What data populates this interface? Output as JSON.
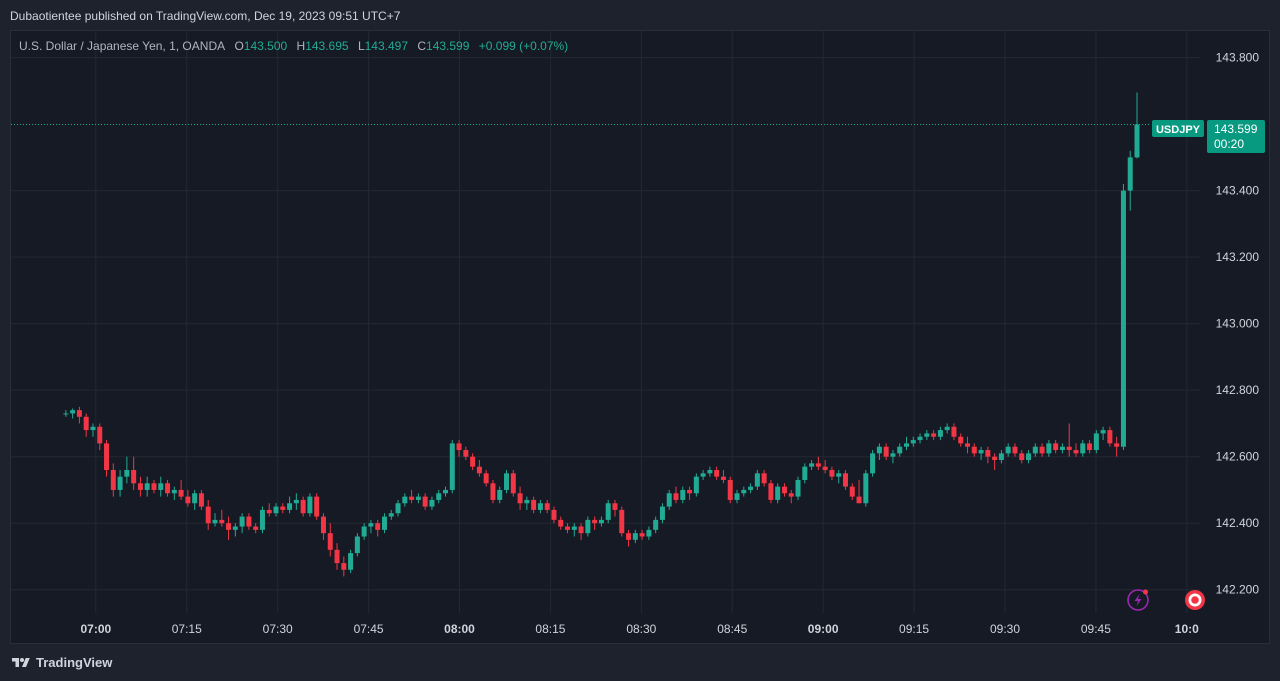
{
  "header": {
    "published_text": "Dubaotientee published on TradingView.com, Dec 19, 2023 09:51 UTC+7"
  },
  "legend": {
    "symbol_text": "U.S. Dollar / Japanese Yen, 1, OANDA",
    "open_label": "O",
    "open_value": "143.500",
    "high_label": "H",
    "high_value": "143.695",
    "low_label": "L",
    "low_value": "143.497",
    "close_label": "C",
    "close_value": "143.599",
    "change_text": "+0.099 (+0.07%)"
  },
  "price_badge": {
    "symbol": "USDJPY",
    "price": "143.599",
    "countdown": "00:20"
  },
  "footer": {
    "brand": "TradingView"
  },
  "colors": {
    "up": "#22ab94",
    "down": "#f23645",
    "background": "#161a25",
    "grid": "#242832",
    "axis_text": "#d1d4dc",
    "badge": "#089981"
  },
  "icons": [
    "lightning-alert-icon",
    "record-icon",
    "tradingview-logo-icon"
  ],
  "chart_data": {
    "type": "candlestick",
    "symbol": "USDJPY",
    "interval": "1",
    "ylim": [
      142.13,
      143.88
    ],
    "y_ticks": [
      "143.800",
      "143.400",
      "143.200",
      "143.000",
      "142.800",
      "142.600",
      "142.400",
      "142.200"
    ],
    "x_ticks": [
      "07:00",
      "07:15",
      "07:30",
      "07:45",
      "08:00",
      "08:15",
      "08:30",
      "08:45",
      "09:00",
      "09:15",
      "09:30",
      "09:45",
      "10:0"
    ],
    "x_ticks_bold": [
      "07:00",
      "08:00",
      "09:00",
      "10:0"
    ],
    "x_range_minutes": [
      406,
      603
    ],
    "last_price": 143.599,
    "start_minute": 420,
    "candles": [
      [
        142.73,
        142.74,
        142.72,
        142.73
      ],
      [
        142.73,
        142.745,
        142.715,
        142.74
      ],
      [
        142.74,
        142.75,
        142.7,
        142.72
      ],
      [
        142.72,
        142.73,
        142.66,
        142.68
      ],
      [
        142.68,
        142.7,
        142.66,
        142.69
      ],
      [
        142.69,
        142.7,
        142.62,
        142.64
      ],
      [
        142.64,
        142.65,
        142.54,
        142.56
      ],
      [
        142.56,
        142.58,
        142.48,
        142.5
      ],
      [
        142.5,
        142.56,
        142.48,
        142.54
      ],
      [
        142.54,
        142.6,
        142.52,
        142.56
      ],
      [
        142.56,
        142.6,
        142.5,
        142.52
      ],
      [
        142.52,
        142.54,
        142.48,
        142.5
      ],
      [
        142.5,
        142.54,
        142.48,
        142.52
      ],
      [
        142.52,
        142.53,
        142.49,
        142.5
      ],
      [
        142.5,
        142.54,
        142.48,
        142.52
      ],
      [
        142.52,
        142.53,
        142.48,
        142.49
      ],
      [
        142.49,
        142.51,
        142.47,
        142.5
      ],
      [
        142.5,
        142.53,
        142.47,
        142.48
      ],
      [
        142.48,
        142.5,
        142.45,
        142.46
      ],
      [
        142.46,
        142.5,
        142.44,
        142.49
      ],
      [
        142.49,
        142.5,
        142.44,
        142.45
      ],
      [
        142.45,
        142.47,
        142.38,
        142.4
      ],
      [
        142.4,
        142.43,
        142.39,
        142.41
      ],
      [
        142.41,
        142.44,
        142.39,
        142.4
      ],
      [
        142.4,
        142.42,
        142.35,
        142.38
      ],
      [
        142.38,
        142.4,
        142.36,
        142.39
      ],
      [
        142.39,
        142.43,
        142.37,
        142.42
      ],
      [
        142.42,
        142.43,
        142.38,
        142.39
      ],
      [
        142.39,
        142.4,
        142.37,
        142.38
      ],
      [
        142.38,
        142.45,
        142.37,
        142.44
      ],
      [
        142.44,
        142.46,
        142.42,
        142.43
      ],
      [
        142.43,
        142.46,
        142.42,
        142.45
      ],
      [
        142.45,
        142.46,
        142.43,
        142.44
      ],
      [
        142.44,
        142.48,
        142.43,
        142.46
      ],
      [
        142.46,
        142.49,
        142.44,
        142.47
      ],
      [
        142.47,
        142.48,
        142.42,
        142.43
      ],
      [
        142.43,
        142.49,
        142.42,
        142.48
      ],
      [
        142.48,
        142.49,
        142.41,
        142.42
      ],
      [
        142.42,
        142.43,
        142.35,
        142.37
      ],
      [
        142.37,
        142.4,
        142.3,
        142.32
      ],
      [
        142.32,
        142.34,
        142.26,
        142.28
      ],
      [
        142.28,
        142.3,
        142.24,
        142.26
      ],
      [
        142.26,
        142.32,
        142.25,
        142.31
      ],
      [
        142.31,
        142.37,
        142.3,
        142.36
      ],
      [
        142.36,
        142.4,
        142.35,
        142.39
      ],
      [
        142.39,
        142.41,
        142.37,
        142.4
      ],
      [
        142.4,
        142.41,
        142.36,
        142.38
      ],
      [
        142.38,
        142.43,
        142.37,
        142.42
      ],
      [
        142.42,
        142.44,
        142.41,
        142.43
      ],
      [
        142.43,
        142.47,
        142.42,
        142.46
      ],
      [
        142.46,
        142.49,
        142.45,
        142.48
      ],
      [
        142.48,
        142.5,
        142.46,
        142.47
      ],
      [
        142.47,
        142.49,
        142.46,
        142.48
      ],
      [
        142.48,
        142.49,
        142.44,
        142.45
      ],
      [
        142.45,
        142.48,
        142.44,
        142.47
      ],
      [
        142.47,
        142.5,
        142.46,
        142.49
      ],
      [
        142.49,
        142.51,
        142.48,
        142.5
      ],
      [
        142.5,
        142.65,
        142.49,
        142.64
      ],
      [
        142.64,
        142.65,
        142.6,
        142.62
      ],
      [
        142.62,
        142.63,
        142.59,
        142.6
      ],
      [
        142.6,
        142.61,
        142.56,
        142.57
      ],
      [
        142.57,
        142.59,
        142.54,
        142.55
      ],
      [
        142.55,
        142.56,
        142.51,
        142.52
      ],
      [
        142.52,
        142.53,
        142.46,
        142.47
      ],
      [
        142.47,
        142.51,
        142.46,
        142.5
      ],
      [
        142.5,
        142.56,
        142.49,
        142.55
      ],
      [
        142.55,
        142.56,
        142.48,
        142.49
      ],
      [
        142.49,
        142.51,
        142.44,
        142.46
      ],
      [
        142.46,
        142.48,
        142.44,
        142.47
      ],
      [
        142.47,
        142.48,
        142.43,
        142.44
      ],
      [
        142.44,
        142.47,
        142.43,
        142.46
      ],
      [
        142.46,
        142.47,
        142.43,
        142.44
      ],
      [
        142.44,
        142.45,
        142.4,
        142.41
      ],
      [
        142.41,
        142.42,
        142.38,
        142.39
      ],
      [
        142.39,
        142.4,
        142.37,
        142.38
      ],
      [
        142.38,
        142.4,
        142.36,
        142.39
      ],
      [
        142.39,
        142.4,
        142.35,
        142.37
      ],
      [
        142.37,
        142.42,
        142.36,
        142.41
      ],
      [
        142.41,
        142.42,
        142.38,
        142.4
      ],
      [
        142.4,
        142.42,
        142.39,
        142.41
      ],
      [
        142.41,
        142.47,
        142.4,
        142.46
      ],
      [
        142.46,
        142.47,
        142.42,
        142.44
      ],
      [
        142.44,
        142.45,
        142.36,
        142.37
      ],
      [
        142.37,
        142.38,
        142.33,
        142.35
      ],
      [
        142.35,
        142.38,
        142.34,
        142.37
      ],
      [
        142.37,
        142.38,
        142.35,
        142.36
      ],
      [
        142.36,
        142.39,
        142.35,
        142.38
      ],
      [
        142.38,
        142.42,
        142.37,
        142.41
      ],
      [
        142.41,
        142.46,
        142.4,
        142.45
      ],
      [
        142.45,
        142.5,
        142.44,
        142.49
      ],
      [
        142.49,
        142.51,
        142.46,
        142.47
      ],
      [
        142.47,
        142.51,
        142.46,
        142.5
      ],
      [
        142.5,
        142.51,
        142.47,
        142.49
      ],
      [
        142.49,
        142.55,
        142.48,
        142.54
      ],
      [
        142.54,
        142.56,
        142.53,
        142.55
      ],
      [
        142.55,
        142.57,
        142.54,
        142.56
      ],
      [
        142.56,
        142.57,
        142.53,
        142.54
      ],
      [
        142.54,
        142.56,
        142.52,
        142.53
      ],
      [
        142.53,
        142.54,
        142.46,
        142.47
      ],
      [
        142.47,
        142.5,
        142.46,
        142.49
      ],
      [
        142.49,
        142.51,
        142.48,
        142.5
      ],
      [
        142.5,
        142.52,
        142.49,
        142.51
      ],
      [
        142.51,
        142.56,
        142.5,
        142.55
      ],
      [
        142.55,
        142.56,
        142.51,
        142.52
      ],
      [
        142.52,
        142.53,
        142.46,
        142.47
      ],
      [
        142.47,
        142.52,
        142.46,
        142.51
      ],
      [
        142.51,
        142.52,
        142.48,
        142.49
      ],
      [
        142.49,
        142.5,
        142.46,
        142.48
      ],
      [
        142.48,
        142.54,
        142.47,
        142.53
      ],
      [
        142.53,
        142.58,
        142.52,
        142.57
      ],
      [
        142.57,
        142.59,
        142.56,
        142.58
      ],
      [
        142.58,
        142.6,
        142.56,
        142.57
      ],
      [
        142.57,
        142.59,
        142.55,
        142.56
      ],
      [
        142.56,
        142.57,
        142.53,
        142.54
      ],
      [
        142.54,
        142.56,
        142.52,
        142.55
      ],
      [
        142.55,
        142.56,
        142.5,
        142.51
      ],
      [
        142.51,
        142.52,
        142.47,
        142.48
      ],
      [
        142.48,
        142.53,
        142.46,
        142.46
      ],
      [
        142.46,
        142.56,
        142.45,
        142.55
      ],
      [
        142.55,
        142.62,
        142.54,
        142.61
      ],
      [
        142.61,
        142.64,
        142.59,
        142.63
      ],
      [
        142.63,
        142.64,
        142.59,
        142.6
      ],
      [
        142.6,
        142.62,
        142.58,
        142.61
      ],
      [
        142.61,
        142.64,
        142.6,
        142.63
      ],
      [
        142.63,
        142.66,
        142.62,
        142.64
      ],
      [
        142.64,
        142.66,
        142.63,
        142.65
      ],
      [
        142.65,
        142.67,
        142.64,
        142.66
      ],
      [
        142.66,
        142.68,
        142.65,
        142.67
      ],
      [
        142.67,
        142.68,
        142.65,
        142.66
      ],
      [
        142.66,
        142.69,
        142.65,
        142.68
      ],
      [
        142.68,
        142.7,
        142.67,
        142.69
      ],
      [
        142.69,
        142.7,
        142.65,
        142.66
      ],
      [
        142.66,
        142.67,
        142.63,
        142.64
      ],
      [
        142.64,
        142.66,
        142.61,
        142.63
      ],
      [
        142.63,
        142.64,
        142.6,
        142.61
      ],
      [
        142.61,
        142.63,
        142.59,
        142.62
      ],
      [
        142.62,
        142.63,
        142.58,
        142.6
      ],
      [
        142.6,
        142.61,
        142.56,
        142.59
      ],
      [
        142.59,
        142.62,
        142.58,
        142.61
      ],
      [
        142.61,
        142.64,
        142.6,
        142.63
      ],
      [
        142.63,
        142.64,
        142.6,
        142.61
      ],
      [
        142.61,
        142.62,
        142.58,
        142.59
      ],
      [
        142.59,
        142.62,
        142.58,
        142.61
      ],
      [
        142.61,
        142.64,
        142.6,
        142.63
      ],
      [
        142.63,
        142.64,
        142.6,
        142.61
      ],
      [
        142.61,
        142.65,
        142.6,
        142.64
      ],
      [
        142.64,
        142.65,
        142.61,
        142.62
      ],
      [
        142.62,
        142.64,
        142.61,
        142.63
      ],
      [
        142.63,
        142.7,
        142.6,
        142.62
      ],
      [
        142.62,
        142.64,
        142.6,
        142.61
      ],
      [
        142.61,
        142.65,
        142.6,
        142.64
      ],
      [
        142.64,
        142.65,
        142.61,
        142.62
      ],
      [
        142.62,
        142.68,
        142.61,
        142.67
      ],
      [
        142.67,
        142.69,
        142.65,
        142.68
      ],
      [
        142.68,
        142.69,
        142.63,
        142.64
      ],
      [
        142.64,
        142.66,
        142.6,
        142.63
      ],
      [
        142.63,
        143.42,
        142.62,
        143.4
      ],
      [
        143.4,
        143.52,
        143.34,
        143.5
      ],
      [
        143.5,
        143.695,
        143.497,
        143.599
      ]
    ]
  }
}
